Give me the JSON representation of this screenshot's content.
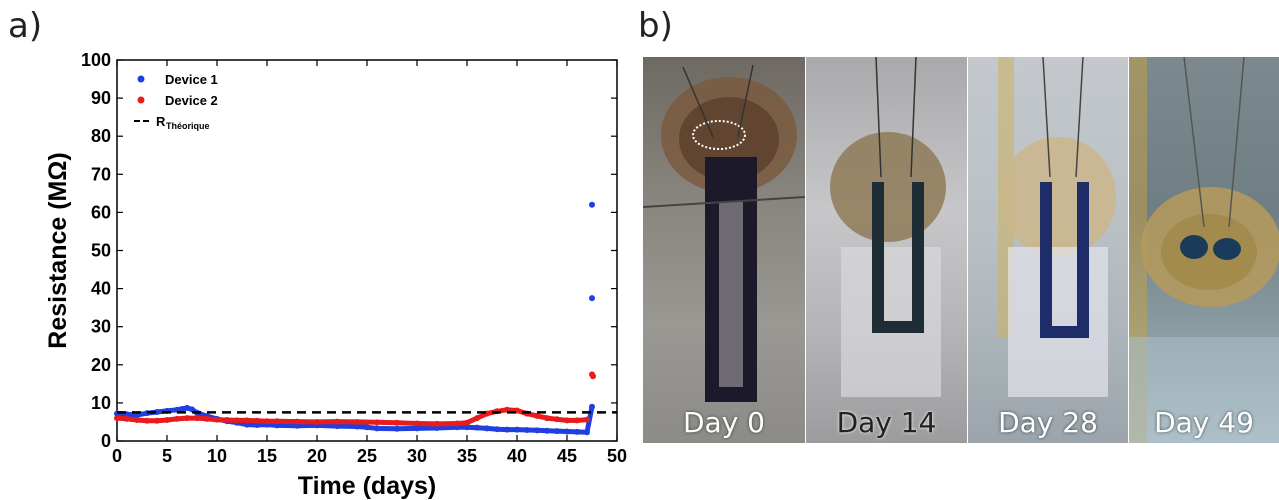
{
  "panels": {
    "a": "a)",
    "b": "b)"
  },
  "chart_data": {
    "type": "scatter",
    "xlabel": "Time (days)",
    "ylabel": "Resistance (MΩ)",
    "xlim": [
      0,
      50
    ],
    "ylim": [
      0,
      100
    ],
    "xticks": [
      0,
      5,
      10,
      15,
      20,
      25,
      30,
      35,
      40,
      45,
      50
    ],
    "yticks": [
      0,
      10,
      20,
      30,
      40,
      50,
      60,
      70,
      80,
      90,
      100
    ],
    "legend_position": "top-left",
    "grid": false,
    "series": [
      {
        "name": "Device 1",
        "color": "#1f3fe0",
        "x": [
          0,
          1,
          2,
          3,
          4,
          5,
          6,
          6.5,
          7,
          7.5,
          8,
          9,
          10,
          11,
          12,
          13,
          14,
          15,
          16,
          18,
          20,
          22,
          24,
          25,
          26,
          28,
          30,
          32,
          34,
          35,
          36,
          37,
          38,
          39,
          40,
          41,
          42,
          43,
          44,
          45,
          46,
          47,
          47.5,
          47.5,
          47.5
        ],
        "y": [
          7.2,
          7.0,
          6.8,
          7.3,
          7.6,
          7.9,
          8.2,
          8.4,
          8.7,
          8.3,
          7.4,
          6.5,
          5.8,
          5.2,
          4.8,
          4.3,
          4.2,
          4.3,
          4.1,
          4.0,
          4.1,
          3.9,
          3.8,
          3.6,
          3.3,
          3.2,
          3.3,
          3.4,
          3.6,
          3.6,
          3.5,
          3.3,
          3.1,
          3.0,
          3.0,
          2.9,
          2.8,
          2.7,
          2.6,
          2.5,
          2.4,
          2.3,
          9.0,
          37.5,
          62.0
        ]
      },
      {
        "name": "Device 2",
        "color": "#e81c1c",
        "x": [
          0,
          1,
          2,
          3,
          4,
          5,
          6,
          7,
          8,
          9,
          10,
          11,
          12,
          13,
          14,
          15,
          16,
          18,
          20,
          22,
          24,
          26,
          28,
          30,
          32,
          34,
          35,
          36,
          37,
          38,
          39,
          40,
          41,
          42,
          43,
          44,
          45,
          46,
          47,
          47.5,
          47.6
        ],
        "y": [
          6.0,
          5.8,
          5.5,
          5.3,
          5.3,
          5.5,
          5.8,
          6.0,
          6.0,
          5.8,
          5.6,
          5.5,
          5.4,
          5.4,
          5.3,
          5.2,
          5.2,
          5.1,
          5.0,
          5.1,
          5.0,
          4.9,
          4.8,
          4.6,
          4.5,
          4.6,
          4.8,
          6.0,
          7.2,
          7.8,
          8.2,
          8.0,
          7.2,
          6.6,
          6.0,
          5.7,
          5.4,
          5.4,
          5.6,
          17.5,
          17.0
        ]
      },
      {
        "name": "R",
        "name_sub": "Théorique",
        "color": "#000000",
        "style": "dashed",
        "y_constant": 7.5
      }
    ]
  },
  "photos": [
    {
      "caption": "Day 0"
    },
    {
      "caption": "Day 14"
    },
    {
      "caption": "Day 28"
    },
    {
      "caption": "Day 49"
    }
  ]
}
